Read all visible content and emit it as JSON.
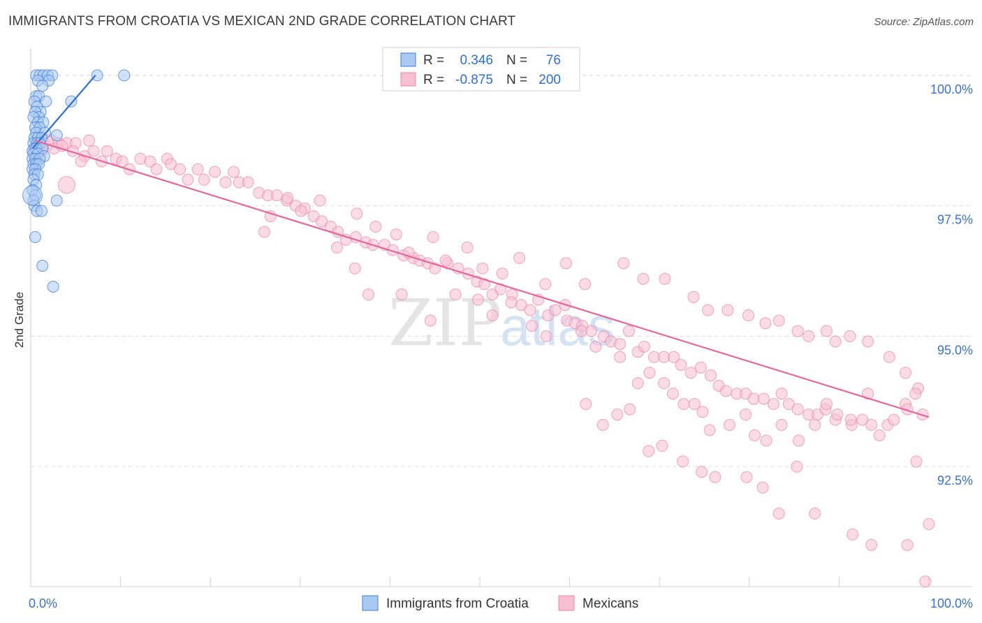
{
  "title": "IMMIGRANTS FROM CROATIA VS MEXICAN 2ND GRADE CORRELATION CHART",
  "source": "Source: ZipAtlas.com",
  "watermark": {
    "zip": "ZIP",
    "atlas": "atlas"
  },
  "colors": {
    "croatia_fill": "#a9c8f2",
    "croatia_stroke": "#3f7fd4",
    "croatia_line": "#2f6fd0",
    "mexican_fill": "#f7bfd2",
    "mexican_stroke": "#ec86a8",
    "mexican_line": "#e5679a",
    "axis_value": "#3a72cc",
    "grid": "#dcdcdc"
  },
  "legend_top": {
    "rows": [
      {
        "series": "Immigrants from Croatia",
        "r_label": "R =",
        "r_value": "0.346",
        "n_label": "N =",
        "n_value": "76"
      },
      {
        "series": "Mexicans",
        "r_label": "R =",
        "r_value": "-0.875",
        "n_label": "N =",
        "n_value": "200"
      }
    ]
  },
  "legend_bottom": [
    "Immigrants from Croatia",
    "Mexicans"
  ],
  "chart_data": {
    "type": "scatter",
    "title": "IMMIGRANTS FROM CROATIA VS MEXICAN 2ND GRADE CORRELATION CHART",
    "xlabel": "",
    "ylabel": "2nd Grade",
    "xlim": [
      0,
      100
    ],
    "ylim": [
      90.2,
      100.4
    ],
    "x_tick_labels": [
      "0.0%",
      "100.0%"
    ],
    "y_ticks": [
      {
        "value": 100.0,
        "label": "100.0%"
      },
      {
        "value": 97.5,
        "label": "97.5%"
      },
      {
        "value": 95.0,
        "label": "95.0%"
      },
      {
        "value": 92.5,
        "label": "92.5%"
      }
    ],
    "grid": true,
    "series": [
      {
        "name": "Immigrants from Croatia",
        "R": 0.346,
        "N": 76,
        "trend": {
          "x": [
            0.2,
            7.2
          ],
          "y": [
            98.6,
            100.0
          ]
        },
        "points": [
          [
            0.6,
            100.0
          ],
          [
            1.0,
            100.0
          ],
          [
            1.4,
            100.0
          ],
          [
            1.9,
            100.0
          ],
          [
            2.4,
            100.0
          ],
          [
            7.4,
            100.0
          ],
          [
            10.4,
            100.0
          ],
          [
            0.8,
            99.9
          ],
          [
            2.0,
            99.9
          ],
          [
            1.3,
            99.8
          ],
          [
            0.6,
            99.6
          ],
          [
            0.9,
            99.6
          ],
          [
            0.4,
            99.5
          ],
          [
            1.7,
            99.5
          ],
          [
            4.5,
            99.5
          ],
          [
            0.7,
            99.4
          ],
          [
            1.1,
            99.3
          ],
          [
            0.5,
            99.3
          ],
          [
            0.9,
            99.2
          ],
          [
            0.3,
            99.2
          ],
          [
            0.8,
            99.1
          ],
          [
            1.4,
            99.1
          ],
          [
            0.5,
            99.0
          ],
          [
            1.0,
            99.0
          ],
          [
            0.6,
            98.9
          ],
          [
            1.6,
            98.9
          ],
          [
            2.9,
            98.85
          ],
          [
            0.4,
            98.8
          ],
          [
            0.8,
            98.8
          ],
          [
            1.2,
            98.8
          ],
          [
            0.3,
            98.7
          ],
          [
            0.7,
            98.7
          ],
          [
            1.0,
            98.7
          ],
          [
            0.4,
            98.6
          ],
          [
            0.2,
            98.55
          ],
          [
            0.6,
            98.6
          ],
          [
            1.3,
            98.6
          ],
          [
            0.3,
            98.5
          ],
          [
            0.8,
            98.5
          ],
          [
            1.5,
            98.45
          ],
          [
            0.2,
            98.4
          ],
          [
            0.5,
            98.4
          ],
          [
            1.0,
            98.4
          ],
          [
            0.3,
            98.3
          ],
          [
            0.6,
            98.3
          ],
          [
            0.9,
            98.3
          ],
          [
            0.2,
            98.2
          ],
          [
            0.5,
            98.2
          ],
          [
            0.4,
            98.1
          ],
          [
            0.8,
            98.1
          ],
          [
            0.3,
            98.0
          ],
          [
            0.6,
            97.9
          ],
          [
            0.2,
            97.8
          ],
          [
            0.5,
            97.7
          ],
          [
            0.3,
            97.6
          ],
          [
            0.4,
            97.5
          ],
          [
            0.7,
            97.4
          ],
          [
            1.2,
            97.4
          ],
          [
            2.9,
            97.6
          ],
          [
            0.5,
            96.9
          ],
          [
            1.3,
            96.35
          ],
          [
            2.5,
            95.95
          ]
        ]
      },
      {
        "name": "Mexicans",
        "R": -0.875,
        "N": 200,
        "trend": {
          "x": [
            0.5,
            100.0
          ],
          "y": [
            98.75,
            93.45
          ]
        },
        "points": [
          [
            0.8,
            98.7
          ],
          [
            1.5,
            98.7
          ],
          [
            2.3,
            98.75
          ],
          [
            3.1,
            98.7
          ],
          [
            4.0,
            98.7
          ],
          [
            5.0,
            98.7
          ],
          [
            6.5,
            98.75
          ],
          [
            1.2,
            98.55
          ],
          [
            2.6,
            98.6
          ],
          [
            3.5,
            98.65
          ],
          [
            4.7,
            98.55
          ],
          [
            6.0,
            98.45
          ],
          [
            7.0,
            98.55
          ],
          [
            8.5,
            98.55
          ],
          [
            5.6,
            98.35
          ],
          [
            7.9,
            98.35
          ],
          [
            9.5,
            98.4
          ],
          [
            10.2,
            98.35
          ],
          [
            11.0,
            98.2
          ],
          [
            12.2,
            98.4
          ],
          [
            13.3,
            98.35
          ],
          [
            14.0,
            98.2
          ],
          [
            15.2,
            98.4
          ],
          [
            15.6,
            98.3
          ],
          [
            16.6,
            98.2
          ],
          [
            17.5,
            98.0
          ],
          [
            18.6,
            98.2
          ],
          [
            19.3,
            98.0
          ],
          [
            20.5,
            98.15
          ],
          [
            21.7,
            97.95
          ],
          [
            22.6,
            98.15
          ],
          [
            23.2,
            97.95
          ],
          [
            24.2,
            97.95
          ],
          [
            25.4,
            97.75
          ],
          [
            26.4,
            97.7
          ],
          [
            27.4,
            97.7
          ],
          [
            28.5,
            97.6
          ],
          [
            29.5,
            97.5
          ],
          [
            30.5,
            97.45
          ],
          [
            31.5,
            97.3
          ],
          [
            32.4,
            97.2
          ],
          [
            33.4,
            97.1
          ],
          [
            34.2,
            97.0
          ],
          [
            35.1,
            96.85
          ],
          [
            36.2,
            96.9
          ],
          [
            37.3,
            96.8
          ],
          [
            38.1,
            96.75
          ],
          [
            39.4,
            96.75
          ],
          [
            40.3,
            96.65
          ],
          [
            41.5,
            96.55
          ],
          [
            42.6,
            96.5
          ],
          [
            43.3,
            96.45
          ],
          [
            44.2,
            96.4
          ],
          [
            45.0,
            96.3
          ],
          [
            46.4,
            96.4
          ],
          [
            47.6,
            96.3
          ],
          [
            48.7,
            96.2
          ],
          [
            49.7,
            96.05
          ],
          [
            50.5,
            96.0
          ],
          [
            51.4,
            95.8
          ],
          [
            52.3,
            95.9
          ],
          [
            53.6,
            95.8
          ],
          [
            54.6,
            95.6
          ],
          [
            55.6,
            95.5
          ],
          [
            56.5,
            95.7
          ],
          [
            57.6,
            95.4
          ],
          [
            58.4,
            95.5
          ],
          [
            59.7,
            95.3
          ],
          [
            60.6,
            95.25
          ],
          [
            61.4,
            95.2
          ],
          [
            62.4,
            95.1
          ],
          [
            63.8,
            95.0
          ],
          [
            64.6,
            94.9
          ],
          [
            65.6,
            94.85
          ],
          [
            66.6,
            95.1
          ],
          [
            67.6,
            94.7
          ],
          [
            68.3,
            94.8
          ],
          [
            69.4,
            94.6
          ],
          [
            70.5,
            94.6
          ],
          [
            71.6,
            94.6
          ],
          [
            72.4,
            94.45
          ],
          [
            73.5,
            94.3
          ],
          [
            74.6,
            94.4
          ],
          [
            75.7,
            94.25
          ],
          [
            76.6,
            94.05
          ],
          [
            77.4,
            93.95
          ],
          [
            78.6,
            93.9
          ],
          [
            79.6,
            93.9
          ],
          [
            80.5,
            93.8
          ],
          [
            81.6,
            93.8
          ],
          [
            82.7,
            93.7
          ],
          [
            83.6,
            93.9
          ],
          [
            84.4,
            93.7
          ],
          [
            85.4,
            93.6
          ],
          [
            86.6,
            93.5
          ],
          [
            87.6,
            93.5
          ],
          [
            88.5,
            93.6
          ],
          [
            89.6,
            93.4
          ],
          [
            91.4,
            93.3
          ],
          [
            92.6,
            93.4
          ],
          [
            93.6,
            93.3
          ],
          [
            95.4,
            93.3
          ],
          [
            97.4,
            93.7
          ],
          [
            26.7,
            97.3
          ],
          [
            28.6,
            97.65
          ],
          [
            32.2,
            97.6
          ],
          [
            36.3,
            97.35
          ],
          [
            38.4,
            97.1
          ],
          [
            40.7,
            96.95
          ],
          [
            42.1,
            96.6
          ],
          [
            44.8,
            96.9
          ],
          [
            46.2,
            96.45
          ],
          [
            48.6,
            96.7
          ],
          [
            50.3,
            96.3
          ],
          [
            52.5,
            96.2
          ],
          [
            54.4,
            96.5
          ],
          [
            57.3,
            96.0
          ],
          [
            59.6,
            96.4
          ],
          [
            61.7,
            96.0
          ],
          [
            66.0,
            96.4
          ],
          [
            68.2,
            96.1
          ],
          [
            70.6,
            96.1
          ],
          [
            73.8,
            95.75
          ],
          [
            75.4,
            95.5
          ],
          [
            77.6,
            95.5
          ],
          [
            79.9,
            95.4
          ],
          [
            81.8,
            95.25
          ],
          [
            83.3,
            95.3
          ],
          [
            85.4,
            95.1
          ],
          [
            86.6,
            95.0
          ],
          [
            88.6,
            95.1
          ],
          [
            89.6,
            94.9
          ],
          [
            91.2,
            95.0
          ],
          [
            93.2,
            94.9
          ],
          [
            95.6,
            94.6
          ],
          [
            97.4,
            94.3
          ],
          [
            98.8,
            94.0
          ],
          [
            26.0,
            97.0
          ],
          [
            30.1,
            97.4
          ],
          [
            34.1,
            96.7
          ],
          [
            36.1,
            96.3
          ],
          [
            37.6,
            95.8
          ],
          [
            41.3,
            95.8
          ],
          [
            44.5,
            95.3
          ],
          [
            47.3,
            95.8
          ],
          [
            49.8,
            95.7
          ],
          [
            51.4,
            95.4
          ],
          [
            53.5,
            95.65
          ],
          [
            55.8,
            95.2
          ],
          [
            57.4,
            95.0
          ],
          [
            59.5,
            95.6
          ],
          [
            61.3,
            95.1
          ],
          [
            62.9,
            94.8
          ],
          [
            65.6,
            94.6
          ],
          [
            67.6,
            94.1
          ],
          [
            68.9,
            94.3
          ],
          [
            70.5,
            94.1
          ],
          [
            71.5,
            93.9
          ],
          [
            72.7,
            93.7
          ],
          [
            73.9,
            93.7
          ],
          [
            74.8,
            93.55
          ],
          [
            75.6,
            93.2
          ],
          [
            77.8,
            93.3
          ],
          [
            79.6,
            93.5
          ],
          [
            80.6,
            93.1
          ],
          [
            81.9,
            93.0
          ],
          [
            83.6,
            93.3
          ],
          [
            85.5,
            93.0
          ],
          [
            87.3,
            93.3
          ],
          [
            88.6,
            93.7
          ],
          [
            89.8,
            93.5
          ],
          [
            91.3,
            93.4
          ],
          [
            93.2,
            93.9
          ],
          [
            94.5,
            93.1
          ],
          [
            96.1,
            93.4
          ],
          [
            97.6,
            93.6
          ],
          [
            98.5,
            93.9
          ],
          [
            61.8,
            93.7
          ],
          [
            63.7,
            93.3
          ],
          [
            65.3,
            93.5
          ],
          [
            66.7,
            93.6
          ],
          [
            68.8,
            92.8
          ],
          [
            70.3,
            92.9
          ],
          [
            72.6,
            92.6
          ],
          [
            74.7,
            92.4
          ],
          [
            76.2,
            92.3
          ],
          [
            79.7,
            92.3
          ],
          [
            81.5,
            92.1
          ],
          [
            83.3,
            91.6
          ],
          [
            85.3,
            92.5
          ],
          [
            87.3,
            91.6
          ],
          [
            91.5,
            91.2
          ],
          [
            93.6,
            91.0
          ],
          [
            97.6,
            91.0
          ],
          [
            99.6,
            90.3
          ],
          [
            100.0,
            91.4
          ],
          [
            99.3,
            93.5
          ],
          [
            98.6,
            92.6
          ]
        ]
      }
    ]
  }
}
